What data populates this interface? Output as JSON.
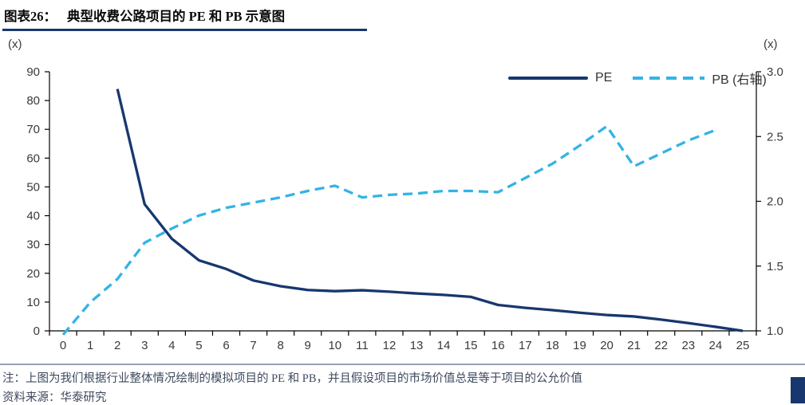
{
  "header": {
    "title_prefix": "图表26：",
    "title_text": "典型收费公路项目的 PE 和 PB 示意图"
  },
  "chart_data": {
    "type": "line",
    "title": "典型收费公路项目的 PE 和 PB 示意图",
    "grid": false,
    "legend_position": "top-right",
    "left_axis": {
      "unit": "(x)",
      "min": 0,
      "max": 90,
      "step": 10,
      "tick_labels": [
        "0",
        "10",
        "20",
        "30",
        "40",
        "50",
        "60",
        "70",
        "80",
        "90"
      ]
    },
    "right_axis": {
      "unit": "(x)",
      "min": 1.0,
      "max": 3.0,
      "step": 0.5,
      "tick_labels": [
        "1.0",
        "1.5",
        "2.0",
        "2.5",
        "3.0"
      ]
    },
    "x_axis": {
      "min": 0,
      "max": 25,
      "labels": [
        "0",
        "1",
        "2",
        "3",
        "4",
        "5",
        "6",
        "7",
        "8",
        "9",
        "10",
        "11",
        "12",
        "13",
        "14",
        "15",
        "16",
        "17",
        "18",
        "19",
        "20",
        "21",
        "22",
        "23",
        "24",
        "25"
      ]
    },
    "series": [
      {
        "name": "PE",
        "axis": "left",
        "line_style": "solid",
        "color": "#17376e",
        "x": [
          2,
          3,
          4,
          5,
          6,
          7,
          8,
          9,
          10,
          11,
          12,
          13,
          14,
          15,
          16,
          17,
          18,
          19,
          20,
          21,
          22,
          23,
          24,
          25
        ],
        "values": [
          84,
          44,
          32,
          24.5,
          21.5,
          17.5,
          15.5,
          14.2,
          13.8,
          14.1,
          13.6,
          13,
          12.5,
          11.8,
          9,
          8,
          7.2,
          6.3,
          5.5,
          5,
          3.9,
          2.7,
          1.4,
          0
        ]
      },
      {
        "name": "PB (右轴)",
        "axis": "right",
        "line_style": "dashed",
        "color": "#33b3e6",
        "x": [
          0,
          1,
          2,
          3,
          4,
          5,
          6,
          7,
          8,
          9,
          10,
          11,
          12,
          13,
          14,
          15,
          16,
          17,
          18,
          19,
          20,
          21,
          22,
          23,
          24
        ],
        "values": [
          0.97,
          1.22,
          1.4,
          1.68,
          1.79,
          1.89,
          1.95,
          1.99,
          2.03,
          2.08,
          2.12,
          2.03,
          2.05,
          2.06,
          2.08,
          2.08,
          2.07,
          2.18,
          2.29,
          2.43,
          2.58,
          2.27,
          2.37,
          2.47,
          2.55
        ]
      }
    ]
  },
  "footer": {
    "note": "注：上图为我们根据行业整体情况绘制的模拟项目的 PE 和 PB，并且假设项目的市场价值总是等于项目的公允价值",
    "source": "资料来源：华泰研究"
  }
}
